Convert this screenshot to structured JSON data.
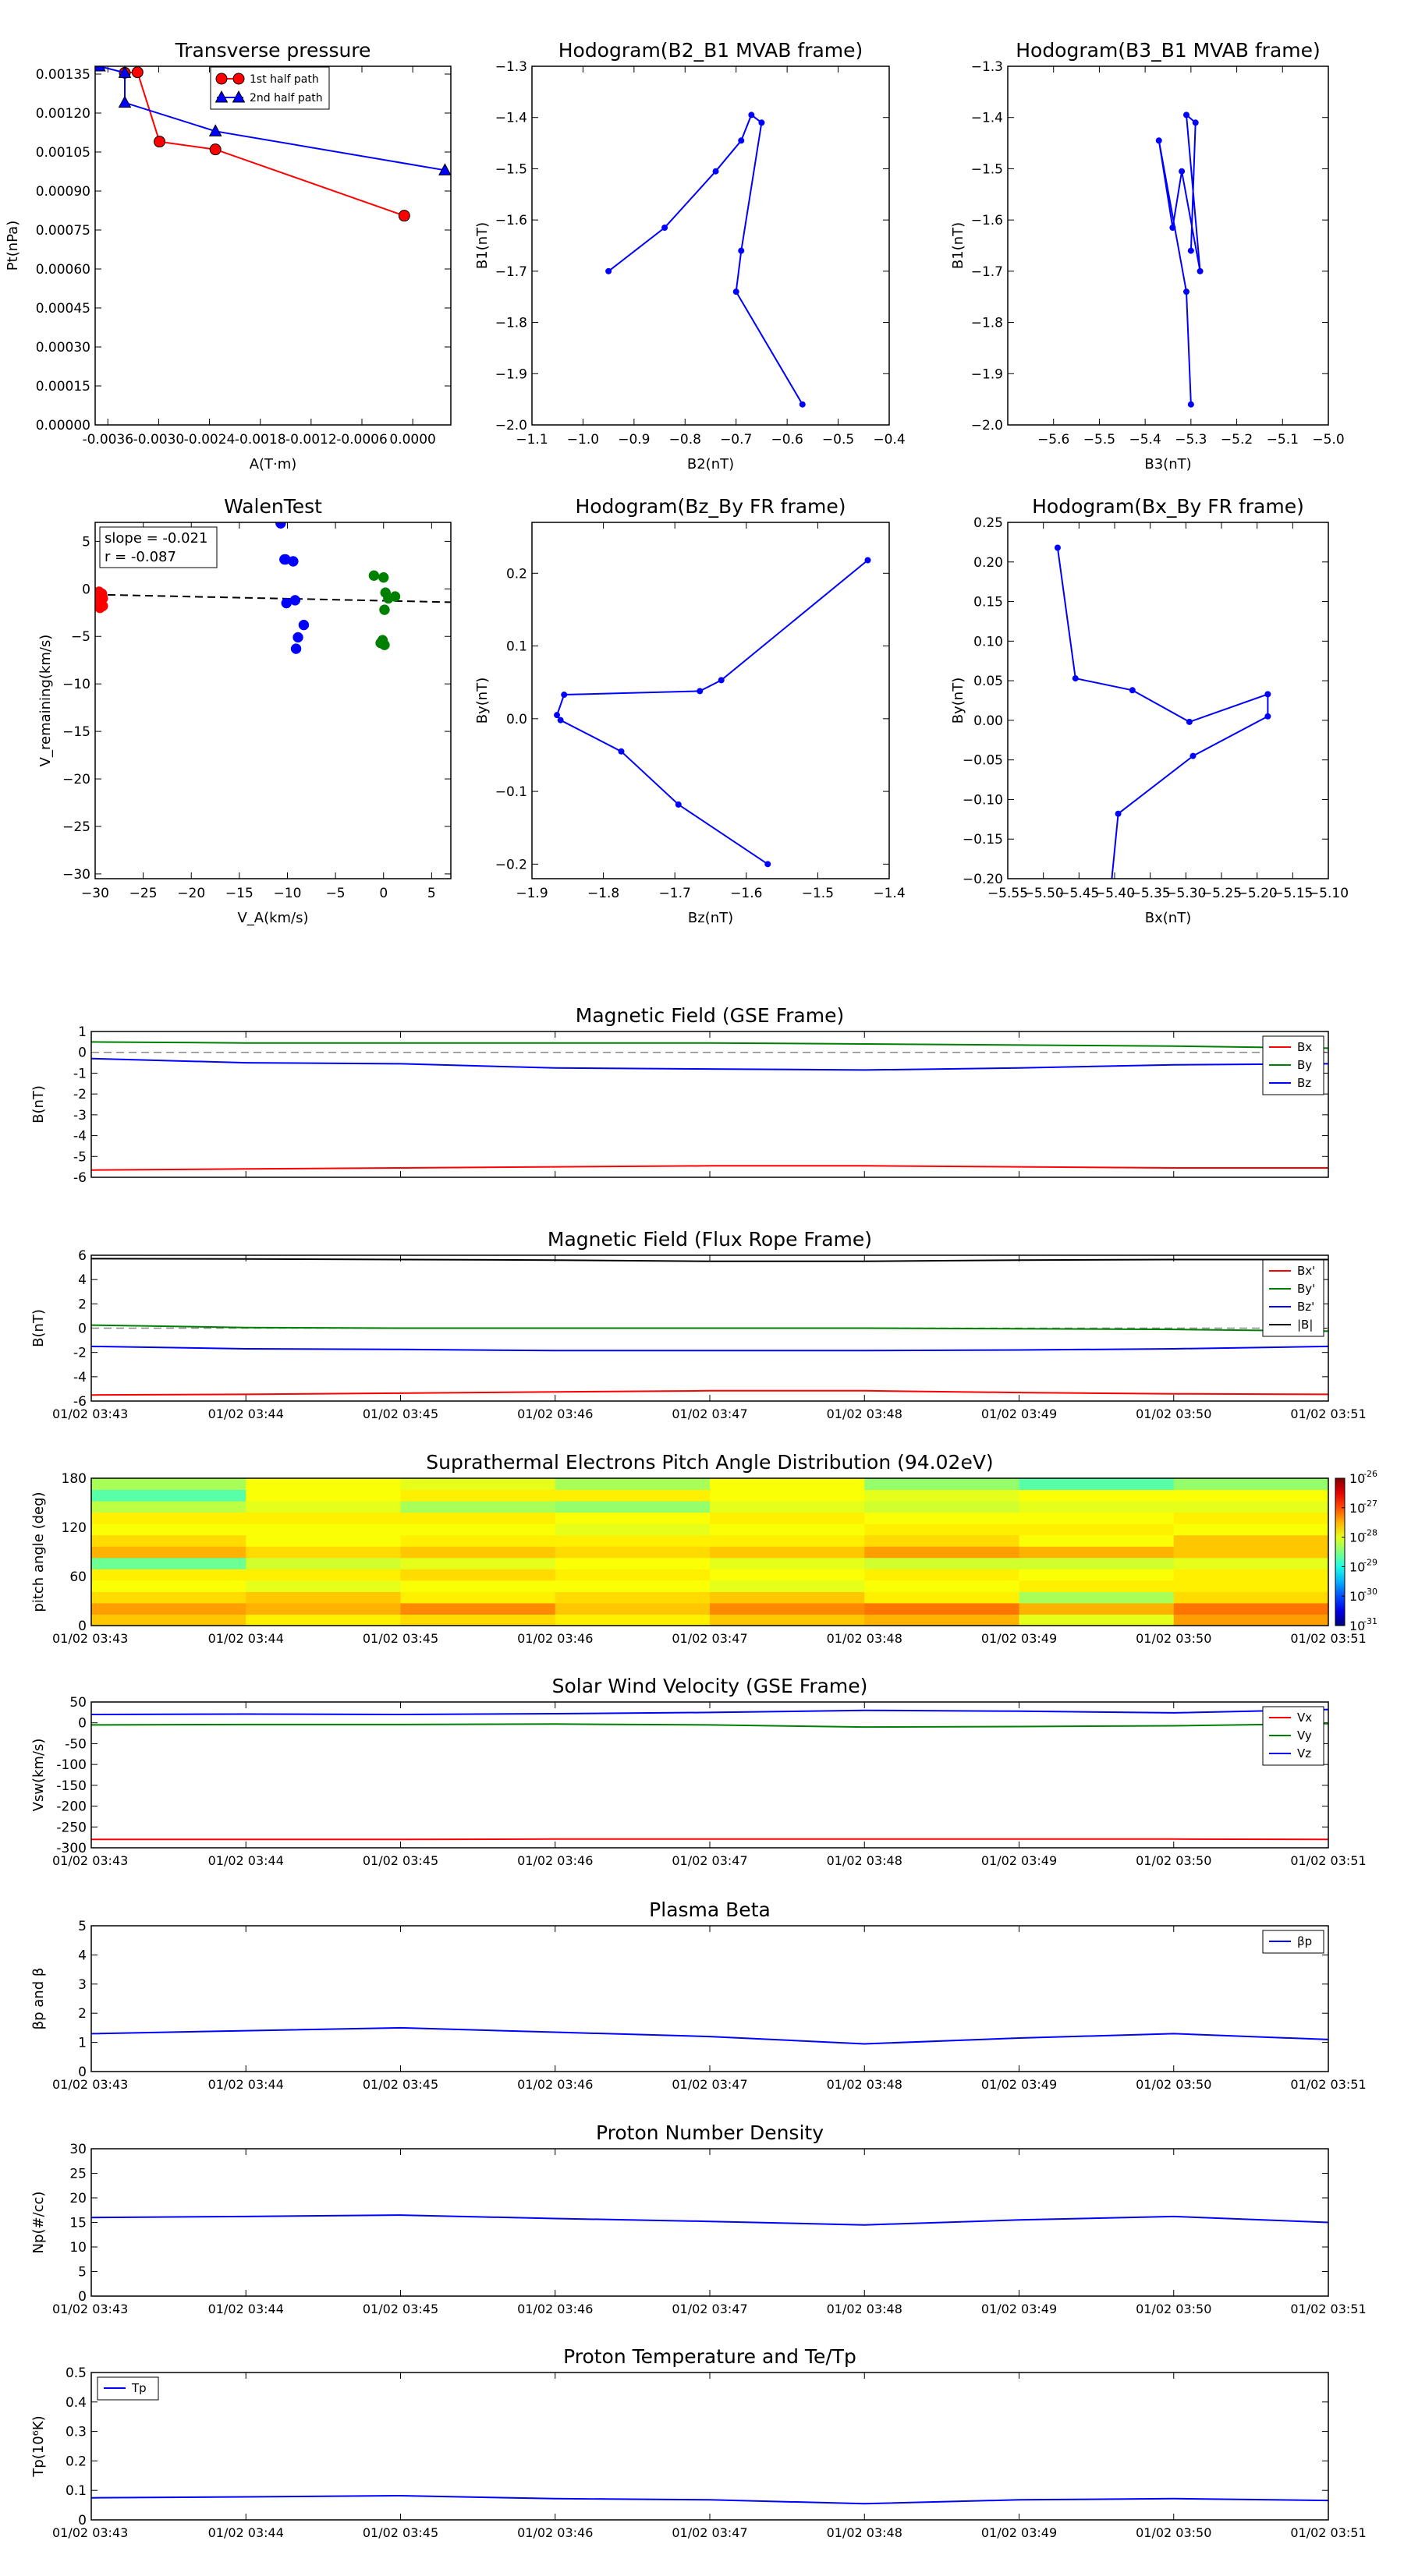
{
  "colors": {
    "red": "#ff0000",
    "green": "#008000",
    "blue": "#0000ff",
    "black": "#000000",
    "grey": "#888888"
  },
  "time_ticks": [
    "01/02 03:43",
    "01/02 03:44",
    "01/02 03:45",
    "01/02 03:46",
    "01/02 03:47",
    "01/02 03:48",
    "01/02 03:49",
    "01/02 03:50",
    "01/02 03:51"
  ],
  "chart_data": [
    {
      "id": "transverse",
      "type": "line",
      "title": "Transverse pressure",
      "xlabel": "A(T·m)",
      "ylabel": "Pt(nPa)",
      "xlim": [
        -0.00375,
        0.00045
      ],
      "ylim": [
        0,
        0.00138
      ],
      "xticks": [
        -0.0036,
        -0.003,
        -0.0024,
        -0.0018,
        -0.0012,
        -0.0006,
        0.0
      ],
      "xtick_labels": [
        "-0.0036",
        "-0.0030",
        "-0.0024",
        "-0.0018",
        "-0.0012",
        "-0.0006",
        "0.0000"
      ],
      "yticks": [
        0,
        0.00015,
        0.0003,
        0.00045,
        0.0006,
        0.00075,
        0.0009,
        0.00105,
        0.0012,
        0.00135
      ],
      "ytick_labels": [
        "0.00000",
        "0.00015",
        "0.00030",
        "0.00045",
        "0.00060",
        "0.00075",
        "0.00090",
        "0.00105",
        "0.00120",
        "0.00135"
      ],
      "legend": "top-center",
      "series": [
        {
          "name": "1st half path",
          "color": "red",
          "marker": "circle",
          "x": [
            -0.0034,
            -0.00325,
            -0.00299,
            -0.00233,
            -0.0001
          ],
          "y": [
            0.001355,
            0.001357,
            0.00109,
            0.00106,
            0.000805
          ]
        },
        {
          "name": "2nd half path",
          "color": "blue",
          "marker": "triangle",
          "x": [
            -0.0037,
            -0.0034,
            -0.0034,
            -0.00233,
            0.00038
          ],
          "y": [
            0.00138,
            0.001355,
            0.00124,
            0.00113,
            0.00098
          ]
        }
      ]
    },
    {
      "id": "hodo_b2b1",
      "type": "line",
      "title": "Hodogram(B2_B1 MVAB frame)",
      "xlabel": "B2(nT)",
      "ylabel": "B1(nT)",
      "xlim": [
        -1.1,
        -0.4
      ],
      "ylim": [
        -2.0,
        -1.3
      ],
      "xticks": [
        -1.1,
        -1.0,
        -0.9,
        -0.8,
        -0.7,
        -0.6,
        -0.5,
        -0.4
      ],
      "xtick_labels": [
        "−1.1",
        "−1.0",
        "−0.9",
        "−0.8",
        "−0.7",
        "−0.6",
        "−0.5",
        "−0.4"
      ],
      "yticks": [
        -2.0,
        -1.9,
        -1.8,
        -1.7,
        -1.6,
        -1.5,
        -1.4,
        -1.3
      ],
      "ytick_labels": [
        "−2.0",
        "−1.9",
        "−1.8",
        "−1.7",
        "−1.6",
        "−1.5",
        "−1.4",
        "−1.3"
      ],
      "series": [
        {
          "color": "blue",
          "marker": "dot",
          "x": [
            -0.95,
            -0.84,
            -0.74,
            -0.69,
            -0.67,
            -0.65,
            -0.69,
            -0.7,
            -0.57
          ],
          "y": [
            -1.7,
            -1.615,
            -1.505,
            -1.445,
            -1.395,
            -1.41,
            -1.66,
            -1.74,
            -1.96
          ]
        }
      ]
    },
    {
      "id": "hodo_b3b1",
      "type": "line",
      "title": "Hodogram(B3_B1 MVAB frame)",
      "xlabel": "B3(nT)",
      "ylabel": "B1(nT)",
      "xlim": [
        -5.7,
        -5.0
      ],
      "ylim": [
        -2.0,
        -1.3
      ],
      "xticks": [
        -5.6,
        -5.5,
        -5.4,
        -5.3,
        -5.2,
        -5.1,
        -5.0
      ],
      "xtick_labels": [
        "−5.6",
        "−5.5",
        "−5.4",
        "−5.3",
        "−5.2",
        "−5.1",
        "−5.0"
      ],
      "yticks": [
        -2.0,
        -1.9,
        -1.8,
        -1.7,
        -1.6,
        -1.5,
        -1.4,
        -1.3
      ],
      "ytick_labels": [
        "−2.0",
        "−1.9",
        "−1.8",
        "−1.7",
        "−1.6",
        "−1.5",
        "−1.4",
        "−1.3"
      ],
      "series": [
        {
          "color": "blue",
          "marker": "dot",
          "x": [
            -5.3,
            -5.31,
            -5.37,
            -5.34,
            -5.32,
            -5.28,
            -5.31,
            -5.29,
            -5.3
          ],
          "y": [
            -1.96,
            -1.74,
            -1.445,
            -1.615,
            -1.505,
            -1.7,
            -1.395,
            -1.41,
            -1.66
          ]
        }
      ]
    },
    {
      "id": "walen",
      "type": "scatter",
      "title": "WalenTest",
      "xlabel": "V_A(km/s)",
      "ylabel": "V_remaining(km/s)",
      "xlim": [
        -30,
        7
      ],
      "ylim": [
        -30.5,
        7
      ],
      "xticks": [
        -30,
        -25,
        -20,
        -15,
        -10,
        -5,
        0,
        5
      ],
      "xtick_labels": [
        "−30",
        "−25",
        "−20",
        "−15",
        "−10",
        "−5",
        "0",
        "5"
      ],
      "yticks": [
        -30,
        -25,
        -20,
        -15,
        -10,
        -5,
        0,
        5
      ],
      "ytick_labels": [
        "−30",
        "−25",
        "−20",
        "−15",
        "−10",
        "−5",
        "0",
        "5"
      ],
      "annotation": [
        "slope = -0.021",
        "r = -0.087"
      ],
      "fit": {
        "x": [
          -30,
          7
        ],
        "y": [
          -0.6,
          -1.4
        ]
      },
      "series": [
        {
          "color": "red",
          "x": [
            -29.6,
            -29.3,
            -29.4,
            -29.5,
            -29.2,
            -29.6,
            -29.3,
            -29.4,
            -29.5,
            -29.2
          ],
          "y": [
            -0.3,
            -0.7,
            -1.1,
            -1.5,
            -1.8,
            -0.9,
            -0.5,
            -1.3,
            -2.0,
            -1.0
          ]
        },
        {
          "color": "blue",
          "x": [
            -10.7,
            -10.3,
            -10.2,
            -9.4,
            -10.1,
            -9.2,
            -8.9,
            -9.1,
            -8.3
          ],
          "y": [
            6.9,
            3.1,
            3.1,
            2.9,
            -1.5,
            -1.2,
            -5.1,
            -6.3,
            -3.8
          ]
        },
        {
          "color": "green",
          "x": [
            -1.0,
            0.0,
            0.2,
            0.5,
            1.2,
            0.1,
            -0.1,
            -0.3,
            0.1
          ],
          "y": [
            1.4,
            1.2,
            -0.4,
            -1.0,
            -0.8,
            -2.2,
            -5.4,
            -5.7,
            -5.9
          ]
        }
      ]
    },
    {
      "id": "hodo_bzby",
      "type": "line",
      "title": "Hodogram(Bz_By FR frame)",
      "xlabel": "Bz(nT)",
      "ylabel": "By(nT)",
      "xlim": [
        -1.9,
        -1.4
      ],
      "ylim": [
        -0.22,
        0.27
      ],
      "xticks": [
        -1.9,
        -1.8,
        -1.7,
        -1.6,
        -1.5,
        -1.4
      ],
      "xtick_labels": [
        "−1.9",
        "−1.8",
        "−1.7",
        "−1.6",
        "−1.5",
        "−1.4"
      ],
      "yticks": [
        -0.2,
        -0.1,
        0.0,
        0.1,
        0.2
      ],
      "ytick_labels": [
        "−0.2",
        "−0.1",
        "0.0",
        "0.1",
        "0.2"
      ],
      "series": [
        {
          "color": "blue",
          "marker": "dot",
          "x": [
            -1.57,
            -1.695,
            -1.775,
            -1.86,
            -1.865,
            -1.855,
            -1.665,
            -1.635,
            -1.43
          ],
          "y": [
            -0.2,
            -0.118,
            -0.045,
            -0.002,
            0.005,
            0.033,
            0.038,
            0.053,
            0.218
          ]
        }
      ]
    },
    {
      "id": "hodo_bxby",
      "type": "line",
      "title": "Hodogram(Bx_By FR frame)",
      "xlabel": "Bx(nT)",
      "ylabel": "By(nT)",
      "xlim": [
        -5.55,
        -5.1
      ],
      "ylim": [
        -0.2,
        0.25
      ],
      "xticks": [
        -5.55,
        -5.5,
        -5.45,
        -5.4,
        -5.35,
        -5.3,
        -5.25,
        -5.2,
        -5.15,
        -5.1
      ],
      "xtick_labels": [
        "−5.55",
        "−5.50",
        "−5.45",
        "−5.40",
        "−5.35",
        "−5.30",
        "−5.25",
        "−5.20",
        "−5.15",
        "−5.10"
      ],
      "yticks": [
        -0.2,
        -0.15,
        -0.1,
        -0.05,
        0.0,
        0.05,
        0.1,
        0.15,
        0.2,
        0.25
      ],
      "ytick_labels": [
        "−0.20",
        "−0.15",
        "−0.10",
        "−0.05",
        "0.00",
        "0.05",
        "0.10",
        "0.15",
        "0.20",
        "0.25"
      ],
      "series": [
        {
          "color": "blue",
          "marker": "dot",
          "x": [
            -5.405,
            -5.395,
            -5.29,
            -5.185,
            -5.185,
            -5.295,
            -5.375,
            -5.455,
            -5.48
          ],
          "y": [
            -0.21,
            -0.118,
            -0.045,
            0.005,
            0.033,
            -0.002,
            0.038,
            0.053,
            0.218
          ]
        }
      ]
    },
    {
      "id": "mag_gse",
      "type": "line",
      "title": "Magnetic Field (GSE Frame)",
      "ylabel": "B(nT)",
      "ylim": [
        -6,
        1
      ],
      "yticks": [
        1,
        0,
        -1,
        -2,
        -3,
        -4,
        -5,
        -6
      ],
      "legend": "top-right",
      "show_time_labels": false,
      "zero_line": true,
      "x": [
        0,
        1,
        2,
        3,
        4,
        5,
        6,
        7,
        8
      ],
      "series": [
        {
          "name": "Bx",
          "color": "red",
          "values": [
            -5.65,
            -5.6,
            -5.55,
            -5.5,
            -5.45,
            -5.45,
            -5.5,
            -5.55,
            -5.55
          ]
        },
        {
          "name": "By",
          "color": "green",
          "values": [
            0.5,
            0.45,
            0.45,
            0.45,
            0.45,
            0.4,
            0.35,
            0.3,
            0.2
          ]
        },
        {
          "name": "Bz",
          "color": "blue",
          "values": [
            -0.3,
            -0.5,
            -0.55,
            -0.75,
            -0.8,
            -0.85,
            -0.75,
            -0.6,
            -0.55
          ]
        }
      ]
    },
    {
      "id": "mag_fr",
      "type": "line",
      "title": "Magnetic Field (Flux Rope Frame)",
      "ylabel": "B(nT)",
      "ylim": [
        -6,
        6
      ],
      "yticks": [
        6,
        4,
        2,
        0,
        -2,
        -4,
        -6
      ],
      "legend": "top-right",
      "show_time_labels": true,
      "zero_line": true,
      "x": [
        0,
        1,
        2,
        3,
        4,
        5,
        6,
        7,
        8
      ],
      "series": [
        {
          "name": "Bx'",
          "color": "red",
          "values": [
            -5.5,
            -5.45,
            -5.35,
            -5.25,
            -5.15,
            -5.15,
            -5.3,
            -5.4,
            -5.45
          ]
        },
        {
          "name": "By'",
          "color": "green",
          "values": [
            0.25,
            0.05,
            0.0,
            0.0,
            0.0,
            0.0,
            -0.05,
            -0.1,
            -0.25
          ]
        },
        {
          "name": "Bz'",
          "color": "blue",
          "values": [
            -1.5,
            -1.7,
            -1.75,
            -1.85,
            -1.85,
            -1.85,
            -1.8,
            -1.7,
            -1.5
          ]
        },
        {
          "name": "|B|",
          "color": "black",
          "values": [
            5.72,
            5.7,
            5.65,
            5.6,
            5.5,
            5.5,
            5.6,
            5.65,
            5.65
          ]
        }
      ]
    },
    {
      "id": "pad",
      "type": "heatmap",
      "title": "Suprathermal Electrons Pitch Angle Distribution (94.02eV)",
      "ylabel": "pitch angle (deg)",
      "ylim": [
        0,
        180
      ],
      "yticks": [
        0,
        60,
        120,
        180
      ],
      "colorbar_labels": [
        "10-26",
        "10-27",
        "10-28",
        "10-29",
        "10-30",
        "10-31"
      ],
      "colorbar_exponents": [
        "-26",
        "-27",
        "-28",
        "-29",
        "-30",
        "-31"
      ],
      "colorbar_range": [
        -31,
        -26
      ],
      "values": [
        [
          -27.6,
          -27.8,
          -27.7,
          -27.8,
          -27.6,
          -27.5,
          -28.0,
          -27.4
        ],
        [
          -27.4,
          -27.5,
          -27.3,
          -27.6,
          -27.3,
          -27.2,
          -27.5,
          -27.2
        ],
        [
          -27.7,
          -27.6,
          -27.8,
          -27.7,
          -27.6,
          -27.8,
          -28.3,
          -27.7
        ],
        [
          -27.9,
          -28.0,
          -27.9,
          -27.9,
          -28.0,
          -27.9,
          -27.8,
          -27.8
        ],
        [
          -27.8,
          -27.8,
          -27.7,
          -27.8,
          -27.9,
          -27.8,
          -27.9,
          -27.8
        ],
        [
          -28.6,
          -28.1,
          -28.0,
          -27.9,
          -28.0,
          -28.1,
          -28.1,
          -28.0
        ],
        [
          -27.5,
          -27.7,
          -27.6,
          -27.7,
          -27.6,
          -27.4,
          -27.5,
          -27.6
        ],
        [
          -27.7,
          -27.9,
          -27.8,
          -27.8,
          -27.8,
          -27.7,
          -27.9,
          -27.6
        ],
        [
          -27.9,
          -27.9,
          -27.9,
          -28.0,
          -27.9,
          -27.8,
          -27.8,
          -27.9
        ],
        [
          -27.8,
          -27.8,
          -27.8,
          -27.9,
          -27.8,
          -27.9,
          -27.9,
          -27.8
        ],
        [
          -28.2,
          -28.0,
          -28.3,
          -28.4,
          -28.0,
          -28.1,
          -28.0,
          -28.0
        ],
        [
          -28.7,
          -27.9,
          -27.8,
          -27.8,
          -27.9,
          -28.0,
          -27.9,
          -27.9
        ],
        [
          -28.3,
          -27.9,
          -28.0,
          -28.3,
          -27.9,
          -28.4,
          -28.7,
          -28.4
        ]
      ]
    },
    {
      "id": "velocity",
      "type": "line",
      "title": "Solar Wind Velocity (GSE Frame)",
      "ylabel": "Vsw(km/s)",
      "ylim": [
        -300,
        50
      ],
      "yticks": [
        50,
        0,
        -50,
        -100,
        -150,
        -200,
        -250,
        -300
      ],
      "legend": "top-right",
      "show_time_labels": true,
      "x": [
        0,
        1,
        2,
        3,
        4,
        5,
        6,
        7,
        8
      ],
      "series": [
        {
          "name": "Vx",
          "color": "red",
          "values": [
            -280,
            -280,
            -280,
            -279,
            -279,
            -279,
            -279,
            -279,
            -280
          ]
        },
        {
          "name": "Vy",
          "color": "green",
          "values": [
            -5,
            -4,
            -4,
            -3,
            -5,
            -10,
            -9,
            -7,
            -2
          ]
        },
        {
          "name": "Vz",
          "color": "blue",
          "values": [
            20,
            21,
            20,
            22,
            25,
            30,
            28,
            24,
            32
          ]
        }
      ]
    },
    {
      "id": "beta",
      "type": "line",
      "title": "Plasma Beta",
      "ylabel": "βp and β",
      "ylim": [
        0,
        5
      ],
      "yticks": [
        5,
        4,
        3,
        2,
        1,
        0
      ],
      "legend": "top-right",
      "show_time_labels": true,
      "x": [
        0,
        1,
        2,
        3,
        4,
        5,
        6,
        7,
        8
      ],
      "series": [
        {
          "name": "βp",
          "color": "blue",
          "values": [
            1.3,
            1.4,
            1.5,
            1.35,
            1.2,
            0.95,
            1.15,
            1.3,
            1.1
          ]
        }
      ]
    },
    {
      "id": "density",
      "type": "line",
      "title": "Proton Number Density",
      "ylabel": "Np(#/cc)",
      "ylim": [
        0,
        30
      ],
      "yticks": [
        30,
        25,
        20,
        15,
        10,
        5,
        0
      ],
      "show_time_labels": true,
      "x": [
        0,
        1,
        2,
        3,
        4,
        5,
        6,
        7,
        8
      ],
      "series": [
        {
          "color": "blue",
          "values": [
            16.0,
            16.2,
            16.5,
            15.8,
            15.2,
            14.5,
            15.5,
            16.2,
            15.0
          ]
        }
      ]
    },
    {
      "id": "temperature",
      "type": "line",
      "title": "Proton Temperature and Te/Tp",
      "ylabel": "Tp(10⁶K)",
      "ylim": [
        0,
        0.5
      ],
      "yticks": [
        0.5,
        0.4,
        0.3,
        0.2,
        0.1,
        0.0
      ],
      "legend": "top-left",
      "show_time_labels": true,
      "x": [
        0,
        1,
        2,
        3,
        4,
        5,
        6,
        7,
        8
      ],
      "series": [
        {
          "name": "Tp",
          "color": "blue",
          "values": [
            0.075,
            0.078,
            0.082,
            0.072,
            0.068,
            0.055,
            0.068,
            0.072,
            0.066
          ]
        }
      ]
    }
  ]
}
